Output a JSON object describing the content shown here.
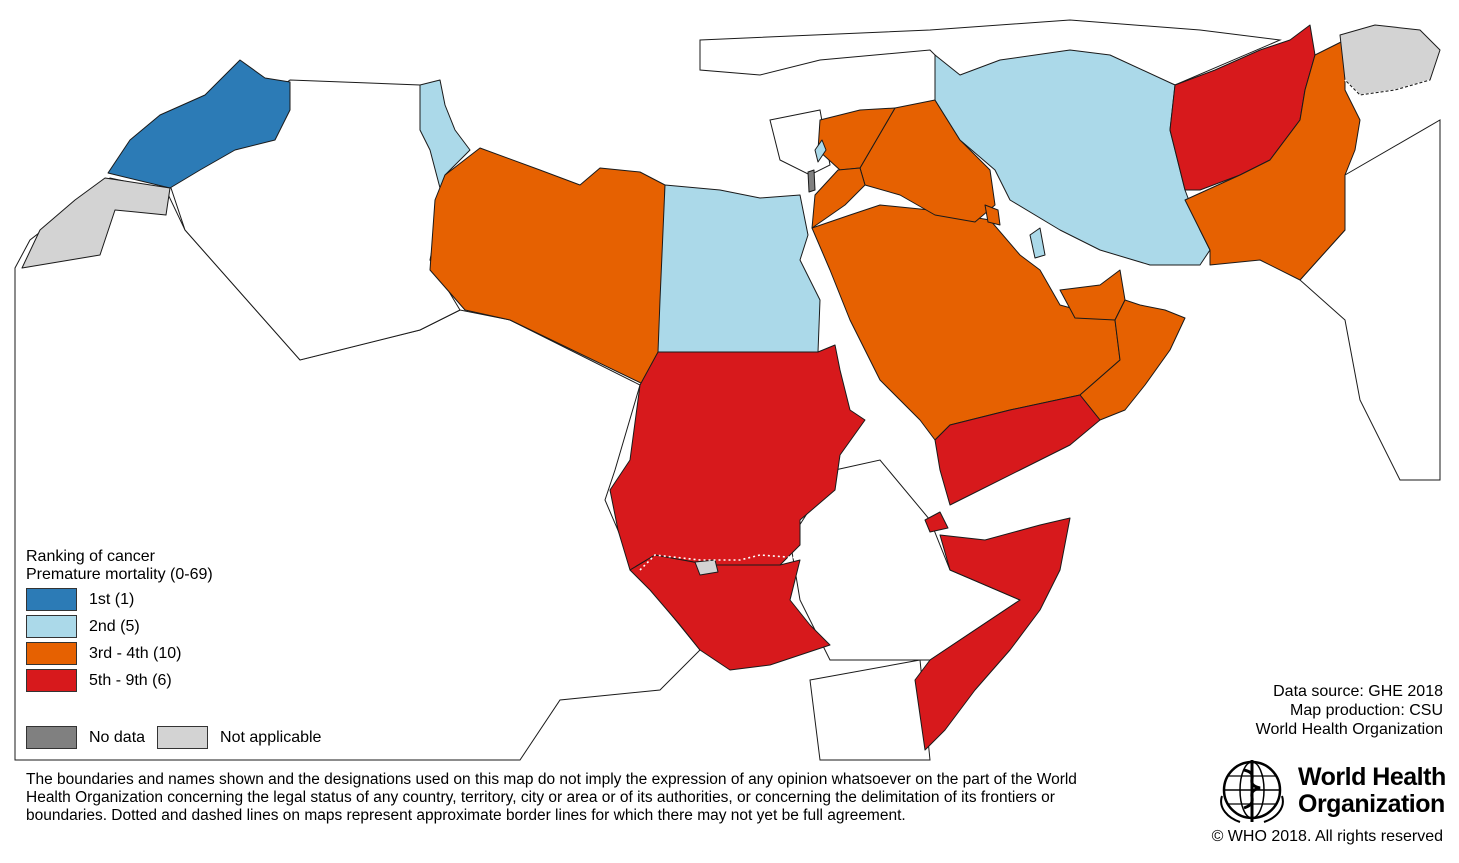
{
  "legend": {
    "title_line1": "Ranking of cancer",
    "title_line2": "Premature mortality (0-69)",
    "classes": [
      {
        "label": "1st (1)",
        "color": "#2c7bb6"
      },
      {
        "label": "2nd (5)",
        "color": "#abd9e9"
      },
      {
        "label": "3rd - 4th (10)",
        "color": "#e66101"
      },
      {
        "label": "5th - 9th (6)",
        "color": "#d7191c"
      }
    ],
    "no_data": {
      "label": "No data",
      "color": "#808080"
    },
    "not_applicable": {
      "label": "Not applicable",
      "color": "#d3d3d3"
    }
  },
  "credits": {
    "source": "Data source: GHE 2018",
    "production": "Map production: CSU",
    "org": "World Health Organization"
  },
  "disclaimer": "The boundaries and names shown and the designations used on this map do not imply the expression of any opinion whatsoever on the part of the World Health Organization concerning the legal status of any country, territory, city or area or of its authorities, or concerning the delimitation of its frontiers or boundaries. Dotted and dashed lines on maps represent approximate border lines for which there may not yet be full agreement.",
  "logo": {
    "line1": "World Health",
    "line2": "Organization",
    "icon": "who-emblem-icon"
  },
  "copyright": "© WHO 2018. All rights reserved"
}
